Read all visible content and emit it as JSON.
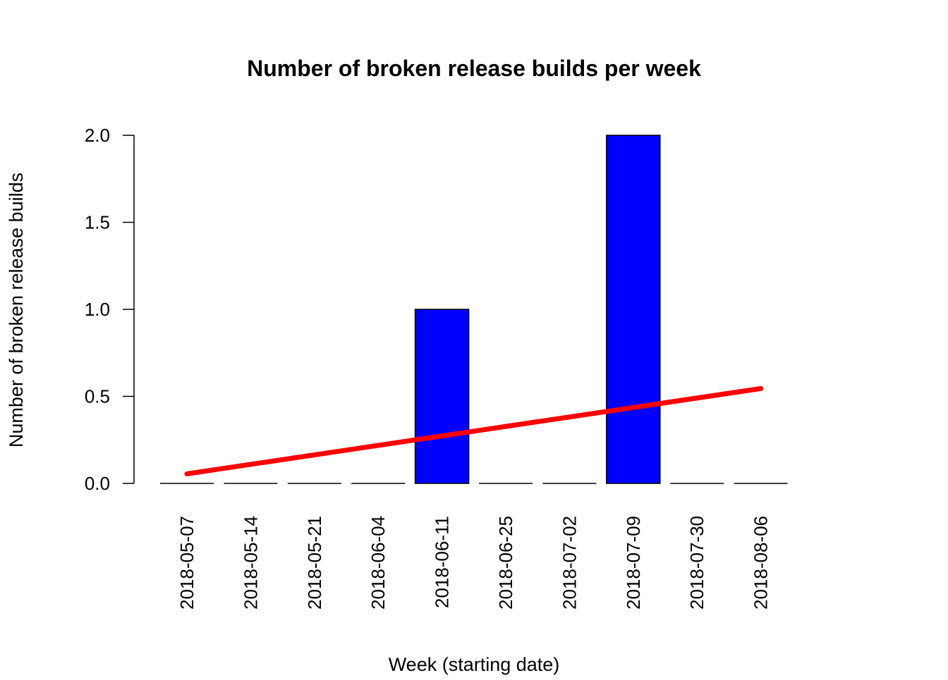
{
  "chart_data": {
    "type": "bar",
    "title": "Number of broken release builds per week",
    "xlabel": "Week (starting date)",
    "ylabel": "Number of broken release builds",
    "categories": [
      "2018-05-07",
      "2018-05-14",
      "2018-05-21",
      "2018-06-04",
      "2018-06-11",
      "2018-06-25",
      "2018-07-02",
      "2018-07-09",
      "2018-07-30",
      "2018-08-06"
    ],
    "values": [
      0,
      0,
      0,
      0,
      1,
      0,
      0,
      2,
      0,
      0
    ],
    "ylim": [
      0,
      2
    ],
    "yticks": [
      "0.0",
      "0.5",
      "1.0",
      "1.5",
      "2.0"
    ],
    "ytick_values": [
      0,
      0.5,
      1.0,
      1.5,
      2.0
    ],
    "bar_color": "#0000ff",
    "trend_line": {
      "color": "#ff0000",
      "start_value": 0.055,
      "end_value": 0.545
    },
    "grid": false,
    "legend": "none"
  }
}
